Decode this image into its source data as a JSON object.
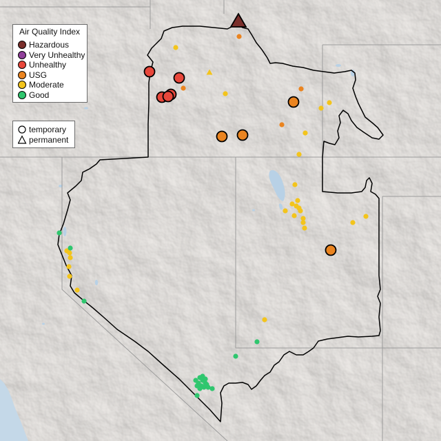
{
  "legend": {
    "title": "Air Quality Index",
    "categories": [
      {
        "label": "Hazardous",
        "color": "#7a2f2b"
      },
      {
        "label": "Very Unhealthy",
        "color": "#8f3f99"
      },
      {
        "label": "Unhealthy",
        "color": "#e8473b"
      },
      {
        "label": "USG",
        "color": "#ea8420"
      },
      {
        "label": "Moderate",
        "color": "#f3c41c"
      },
      {
        "label": "Good",
        "color": "#2fc66e"
      }
    ]
  },
  "shape_legend": {
    "temporary": "temporary",
    "permanent": "permanent"
  },
  "map": {
    "terrain_color": "#e9e6e3",
    "water_color": "#c4d8e8",
    "lake_color": "#b8d1e6",
    "region_outline_color": "#000000",
    "state_line_color": "#9c9c9c"
  }
}
